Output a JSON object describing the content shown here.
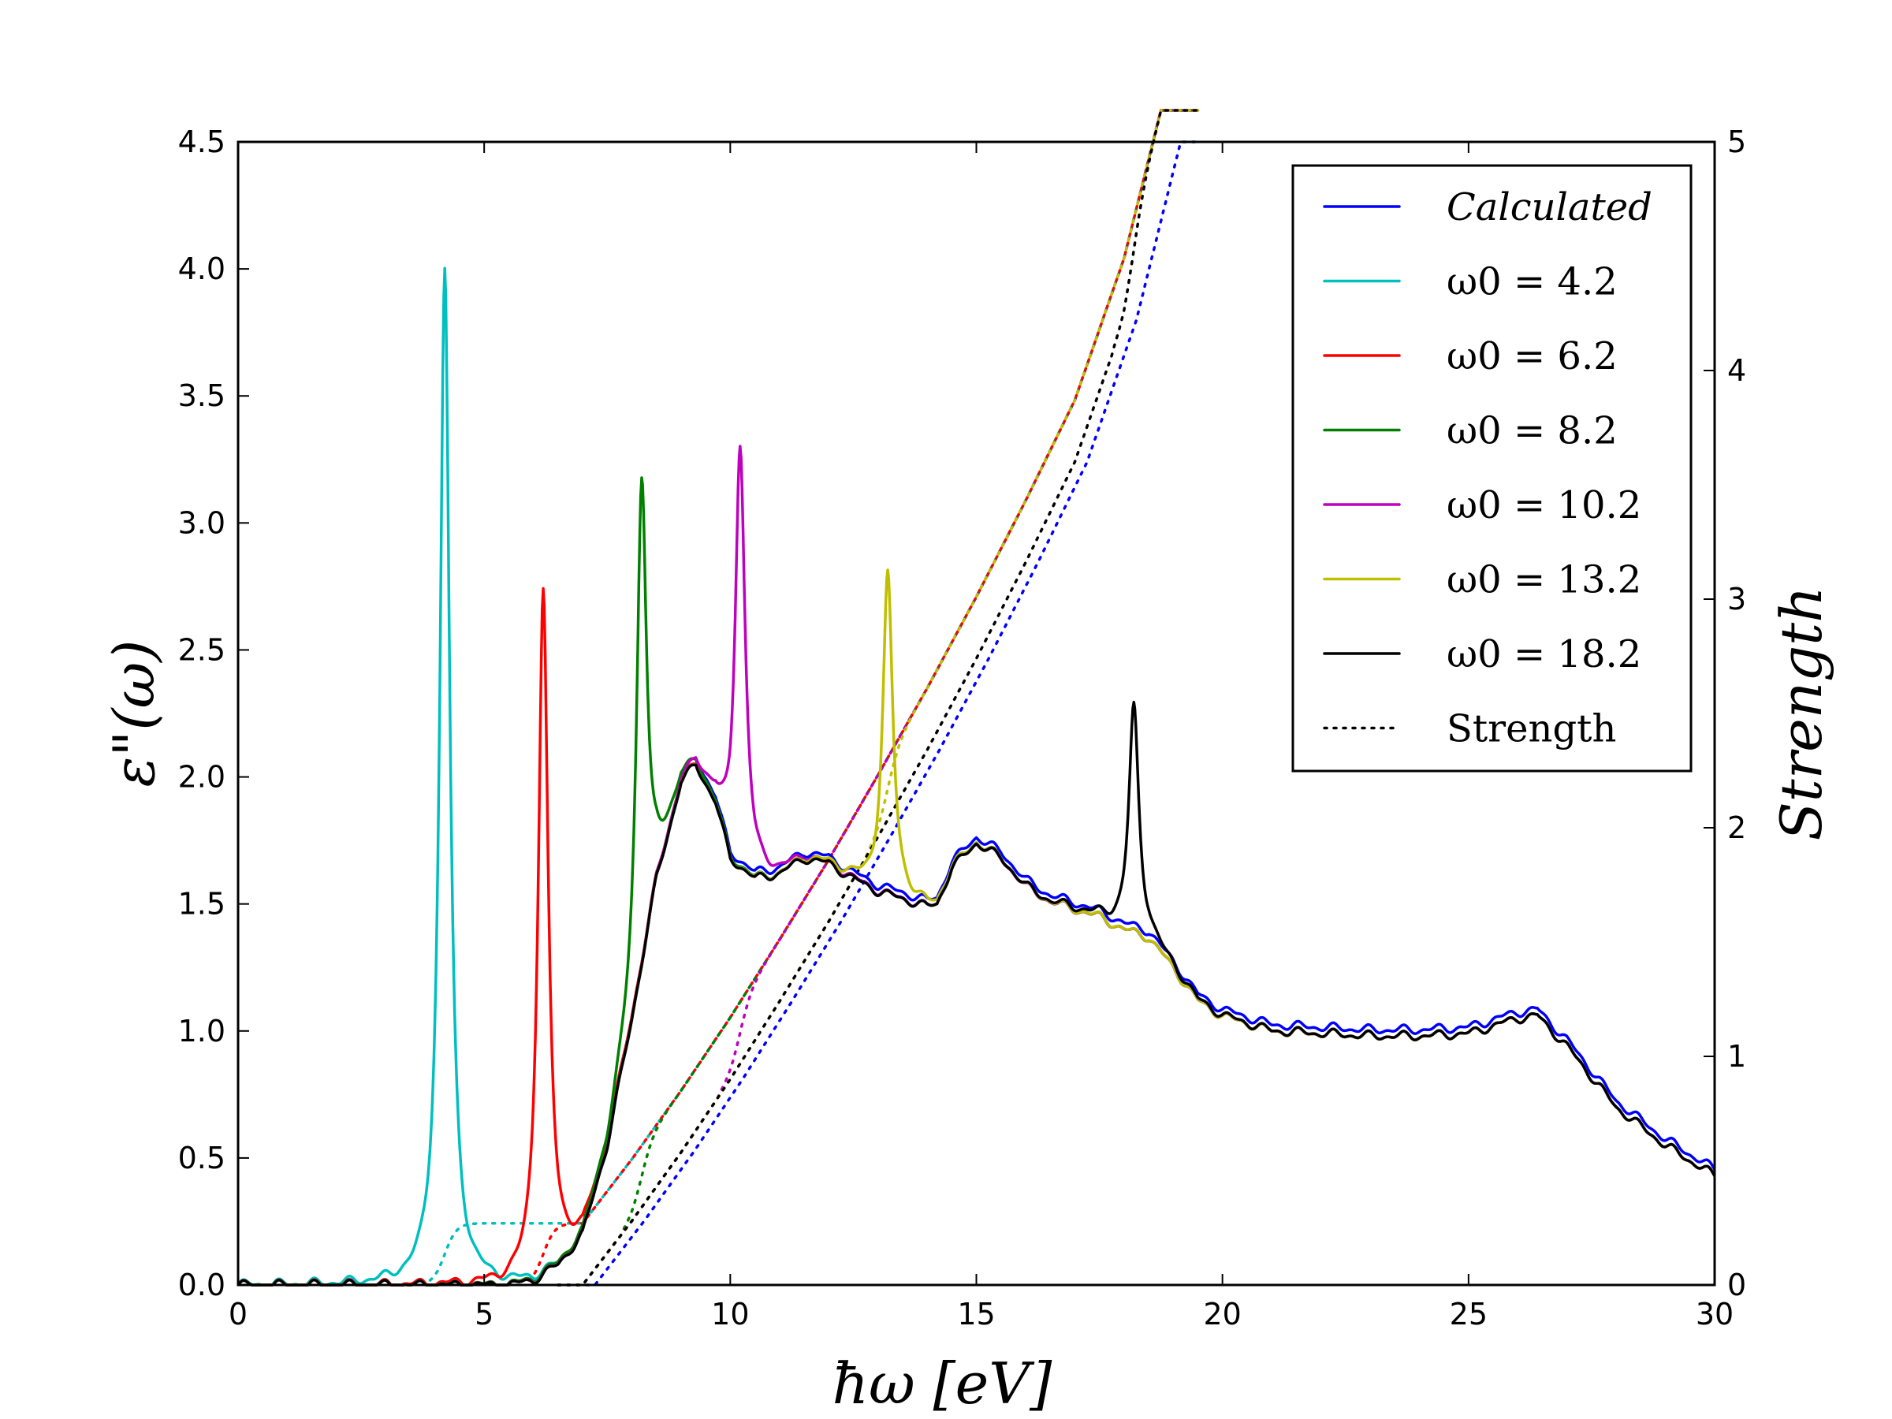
{
  "chart_data": {
    "type": "line",
    "title": "",
    "xlabel": "ħω  [eV]",
    "ylabel": "ε\"(ω)",
    "y2label": "Strength",
    "xlim": [
      0,
      30
    ],
    "ylim": [
      0,
      4.5
    ],
    "y2lim": [
      0,
      5
    ],
    "xticks": [
      "0",
      "5",
      "10",
      "15",
      "20",
      "25",
      "30"
    ],
    "yticks": [
      "0.0",
      "0.5",
      "1.0",
      "1.5",
      "2.0",
      "2.5",
      "3.0",
      "3.5",
      "4.0",
      "4.5"
    ],
    "y2ticks": [
      "0",
      "1",
      "2",
      "3",
      "4",
      "5"
    ],
    "legend_position": "top-right",
    "series": [
      {
        "name": "Calculated",
        "color": "#0000ff",
        "style": "solid"
      },
      {
        "name": "ω0 = 4.2",
        "color": "#00bfbf",
        "style": "solid",
        "peak_x": 4.2,
        "peak_y": 4.0
      },
      {
        "name": "ω0 = 6.2",
        "color": "#ff0000",
        "style": "solid",
        "peak_x": 6.2,
        "peak_y": 2.74
      },
      {
        "name": "ω0 = 8.2",
        "color": "#008000",
        "style": "solid",
        "peak_x": 8.2,
        "peak_y": 3.19
      },
      {
        "name": "ω0 = 10.2",
        "color": "#bf00bf",
        "style": "solid",
        "peak_x": 10.2,
        "peak_y": 3.31
      },
      {
        "name": "ω0 = 13.2",
        "color": "#bfbf00",
        "style": "solid",
        "peak_x": 13.2,
        "peak_y": 2.8
      },
      {
        "name": "ω0 = 18.2",
        "color": "#000000",
        "style": "solid",
        "peak_x": 18.2,
        "peak_y": 2.28
      },
      {
        "name": "Strength",
        "color": "#000000",
        "style": "dotted"
      }
    ],
    "base_curve": {
      "x": [
        0,
        5.5,
        6.0,
        6.5,
        7.0,
        7.5,
        8.0,
        8.5,
        9.0,
        9.3,
        9.7,
        10.0,
        10.5,
        11.0,
        11.5,
        12.0,
        12.5,
        13.0,
        13.5,
        14.0,
        14.2,
        14.5,
        15.0,
        15.5,
        16.0,
        16.5,
        17.0,
        17.5,
        18.0,
        18.5,
        19.0,
        19.5,
        20.0,
        21.0,
        22.0,
        23.0,
        24.0,
        25.0,
        26.0,
        26.4,
        27.0,
        28.0,
        29.0,
        30.0
      ],
      "y": [
        0,
        0.0,
        0.02,
        0.08,
        0.2,
        0.55,
        1.05,
        1.6,
        1.98,
        2.05,
        1.9,
        1.68,
        1.6,
        1.62,
        1.68,
        1.66,
        1.6,
        1.55,
        1.52,
        1.49,
        1.5,
        1.64,
        1.74,
        1.68,
        1.57,
        1.51,
        1.48,
        1.45,
        1.4,
        1.37,
        1.25,
        1.12,
        1.06,
        1.0,
        0.99,
        0.98,
        0.98,
        0.99,
        1.05,
        1.06,
        0.94,
        0.7,
        0.55,
        0.43
      ]
    },
    "strength_curve": {
      "x": [
        0,
        7.0,
        8.0,
        9.0,
        10.0,
        11.0,
        12.0,
        13.0,
        14.0,
        15.0,
        16.0,
        17.0,
        18.0,
        18.9
      ],
      "y": [
        0,
        0.0,
        0.28,
        0.58,
        0.9,
        1.24,
        1.59,
        1.96,
        2.34,
        2.74,
        3.16,
        3.6,
        4.22,
        5.0
      ]
    }
  }
}
